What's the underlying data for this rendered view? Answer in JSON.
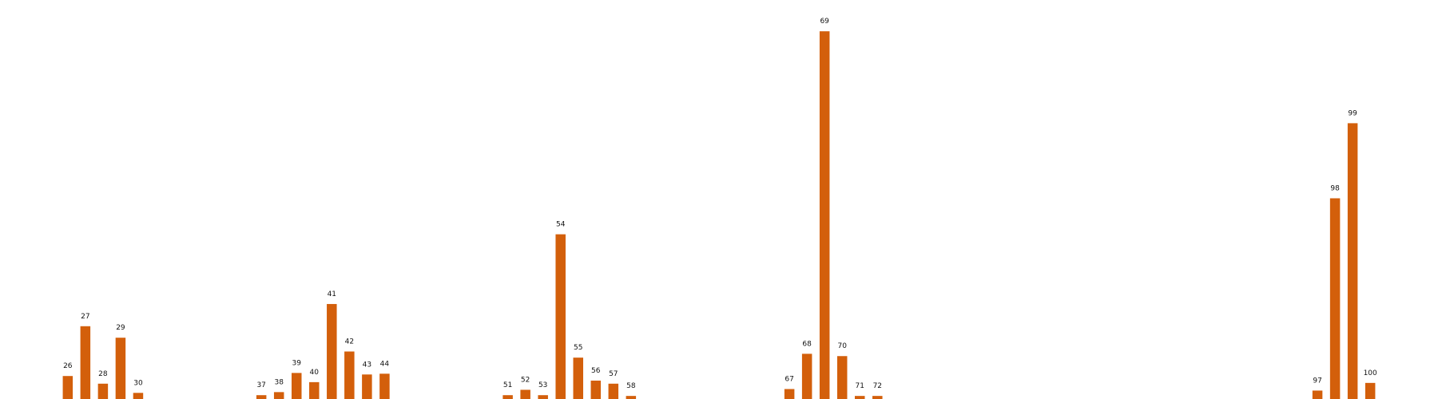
{
  "chart_data": {
    "type": "bar",
    "title": "",
    "xlabel": "",
    "ylabel": "",
    "grid": false,
    "axes_visible": false,
    "bar_color": "#d35f0b",
    "x": [
      26,
      27,
      28,
      29,
      30,
      37,
      38,
      39,
      40,
      41,
      42,
      43,
      44,
      51,
      52,
      53,
      54,
      55,
      56,
      57,
      58,
      67,
      68,
      69,
      70,
      71,
      72,
      97,
      98,
      99,
      100
    ],
    "values": [
      3,
      9.5,
      2,
      8,
      0.8,
      0.5,
      0.9,
      3.4,
      2.2,
      12.4,
      6.2,
      3.2,
      3.3,
      0.5,
      1.2,
      0.5,
      21.5,
      5.4,
      2.4,
      2,
      0.4,
      1.3,
      5.9,
      48,
      5.6,
      0.4,
      0.4,
      1.1,
      26.2,
      36,
      2.1
    ],
    "labels": [
      "26",
      "27",
      "28",
      "29",
      "30",
      "37",
      "38",
      "39",
      "40",
      "41",
      "42",
      "43",
      "44",
      "51",
      "52",
      "53",
      "54",
      "55",
      "56",
      "57",
      "58",
      "67",
      "68",
      "69",
      "70",
      "71",
      "72",
      "97",
      "98",
      "99",
      "100"
    ],
    "xlim": [
      22.15,
      103.85
    ],
    "ylim": [
      0,
      50
    ]
  }
}
